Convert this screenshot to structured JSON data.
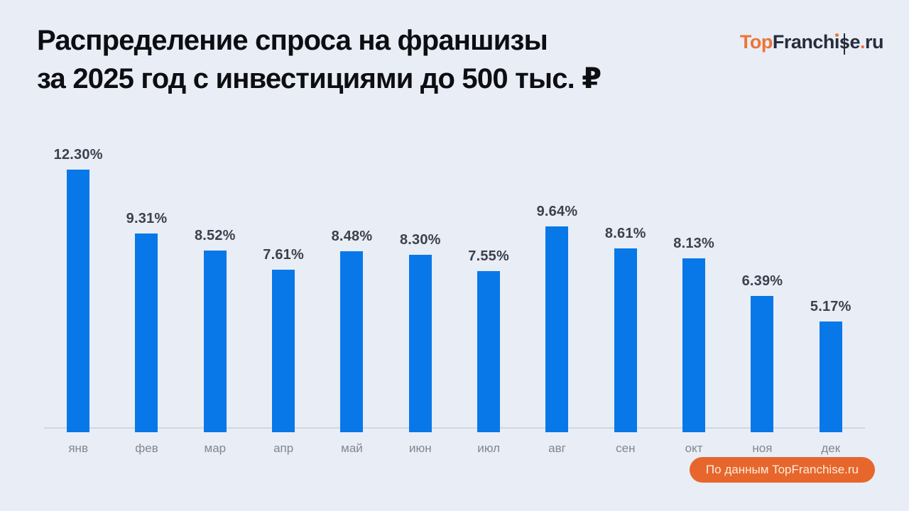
{
  "page": {
    "background": "#e9edf6"
  },
  "title": {
    "line1": "Распределение спроса на франшизы",
    "line2": "за 2025 год с инвестициями до 500 тыс. ₽"
  },
  "logo": {
    "full_text": "TopFranchise.ru",
    "p1": "Top",
    "p2": "Franch",
    "p3": "ı",
    "p4": "s",
    "p5": "e",
    "p6": ".",
    "p7": "ru",
    "accent_color": "#ee7434",
    "dark_color": "#272d3d"
  },
  "chart_data": {
    "type": "bar",
    "title": "Распределение спроса на франшизы за 2025 год с инвестициями до 500 тыс. ₽",
    "categories": [
      "янв",
      "фев",
      "мар",
      "апр",
      "май",
      "июн",
      "июл",
      "авг",
      "сен",
      "окт",
      "ноя",
      "дек"
    ],
    "values": [
      12.3,
      9.31,
      8.52,
      7.61,
      8.48,
      8.3,
      7.55,
      9.64,
      8.61,
      8.13,
      6.39,
      5.17
    ],
    "value_labels": [
      "12.30%",
      "9.31%",
      "8.52%",
      "7.61%",
      "8.48%",
      "8.30%",
      "7.55%",
      "9.64%",
      "8.61%",
      "8.13%",
      "6.39%",
      "5.17%"
    ],
    "xlabel": "",
    "ylabel": "",
    "ylim": [
      0,
      12.3
    ],
    "grid": false,
    "legend": null,
    "bar_color": "#0878e8",
    "label_color": "#3c424d",
    "axis_color": "#d3d7e0"
  },
  "footer": {
    "badge_text": "По данным TopFranchise.ru",
    "badge_bg": "#e7662c",
    "badge_text_color": "#fdecdc"
  }
}
